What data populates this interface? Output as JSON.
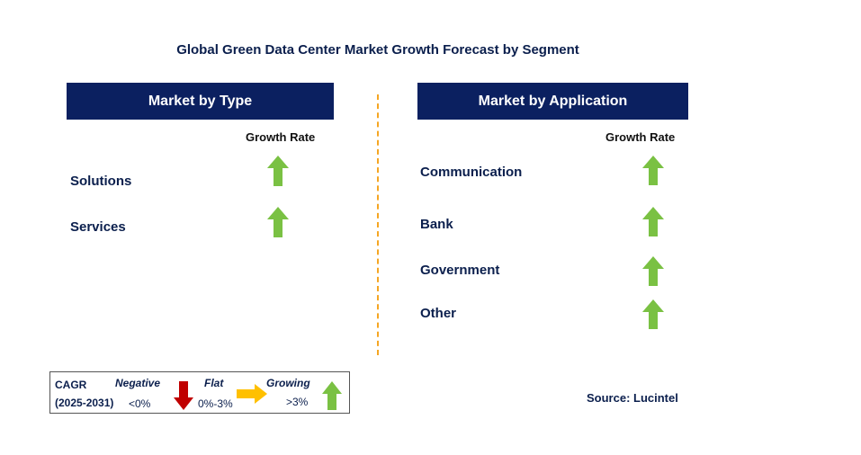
{
  "title": "Global Green Data Center Market Growth Forecast by Segment",
  "left_panel": {
    "header": "Market by Type",
    "growth_rate_label": "Growth Rate",
    "rows": [
      {
        "label": "Solutions",
        "trend": "growing"
      },
      {
        "label": "Services",
        "trend": "growing"
      }
    ]
  },
  "right_panel": {
    "header": "Market by Application",
    "growth_rate_label": "Growth Rate",
    "rows": [
      {
        "label": "Communication",
        "trend": "growing"
      },
      {
        "label": "Bank",
        "trend": "growing"
      },
      {
        "label": "Government",
        "trend": "growing"
      },
      {
        "label": "Other",
        "trend": "growing"
      }
    ]
  },
  "legend": {
    "cagr_label": "CAGR",
    "period": "(2025-2031)",
    "negative": {
      "label": "Negative",
      "range": "<0%",
      "icon": "down-arrow-icon",
      "color": "#c00000"
    },
    "flat": {
      "label": "Flat",
      "range": "0%-3%",
      "icon": "right-arrow-icon",
      "color": "#ffc000"
    },
    "growing": {
      "label": "Growing",
      "range": ">3%",
      "icon": "up-arrow-icon",
      "color": "#7ac143"
    }
  },
  "source": "Source: Lucintel",
  "colors": {
    "header_bg": "#0b2060",
    "text": "#0b1f4d",
    "divider": "#f5a623",
    "up_arrow": "#7ac143"
  }
}
